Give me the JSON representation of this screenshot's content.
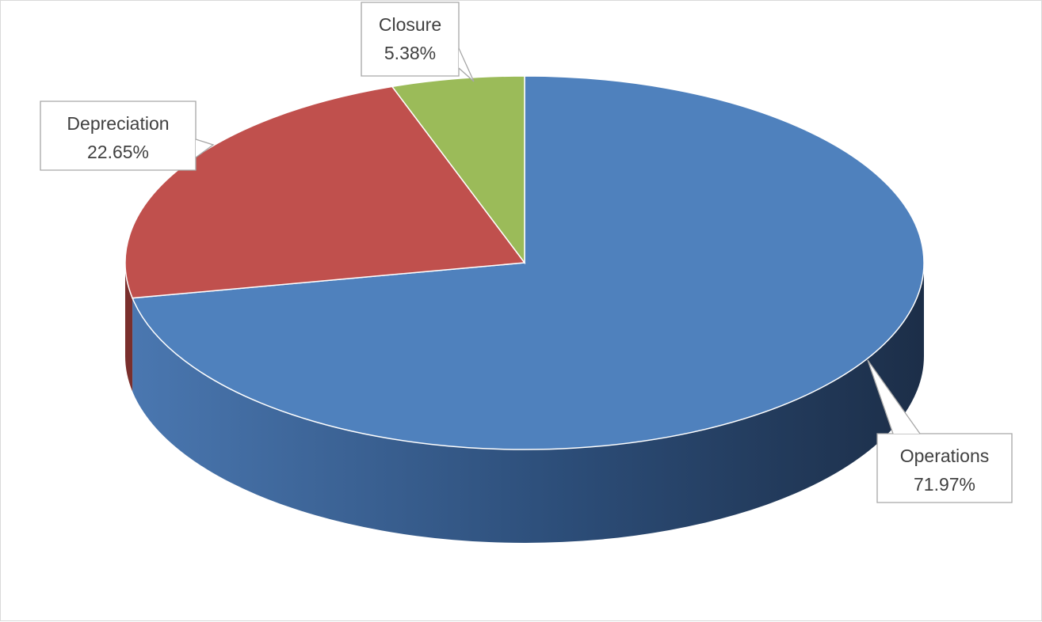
{
  "chart_data": {
    "type": "pie",
    "style": "3d",
    "title": "",
    "slices": [
      {
        "name": "Operations",
        "value": 71.97,
        "label": "71.97%",
        "color": "#4f81bd",
        "side_color": "#2b4c75"
      },
      {
        "name": "Depreciation",
        "value": 22.65,
        "label": "22.65%",
        "color": "#c0504d",
        "side_color": "#7a2f2d"
      },
      {
        "name": "Closure",
        "value": 5.38,
        "label": "5.38%",
        "color": "#9bbb59",
        "side_color": "#5f7535"
      }
    ],
    "legend": "none",
    "data_labels": "callout"
  }
}
